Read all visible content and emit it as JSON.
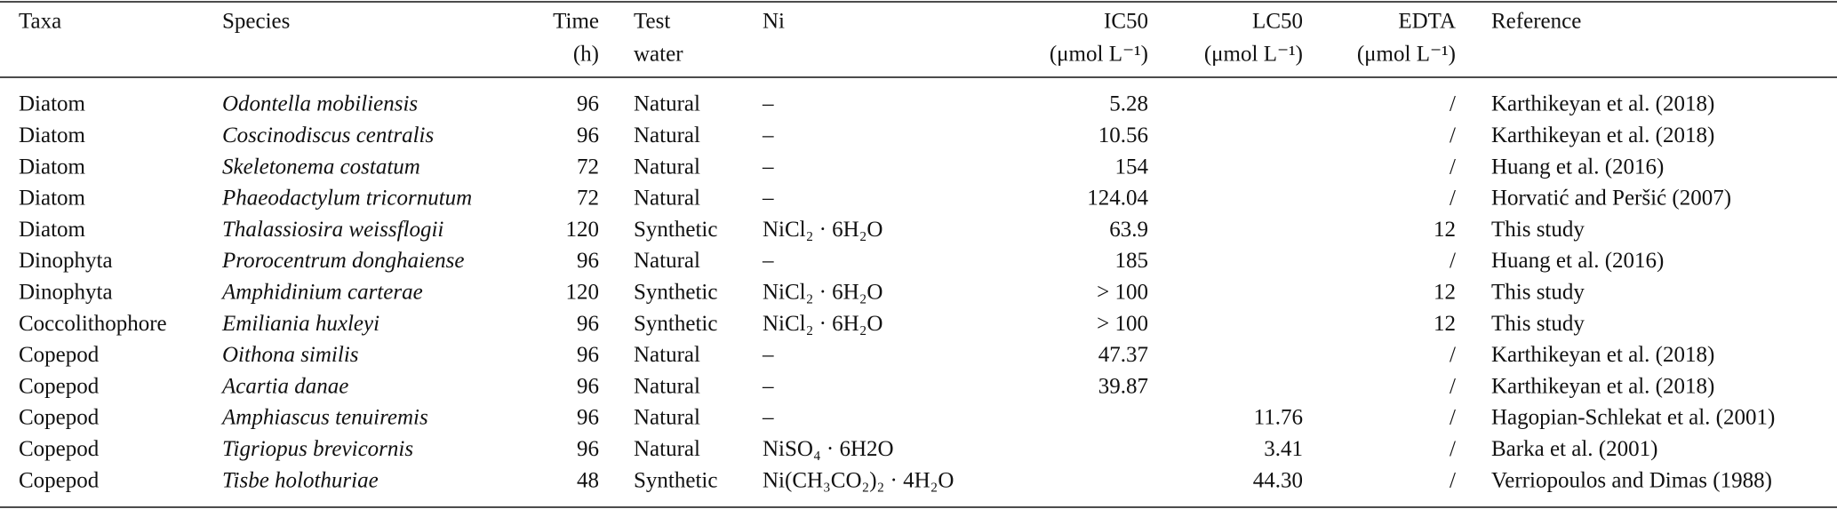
{
  "table": {
    "header": [
      [
        "Taxa"
      ],
      [
        "Species"
      ],
      [
        "Time",
        "(h)"
      ],
      [
        "Test",
        "water"
      ],
      [
        "Ni"
      ],
      [
        "IC50",
        "(μmol L⁻¹)"
      ],
      [
        "LC50",
        "(μmol L⁻¹)"
      ],
      [
        "EDTA",
        "(μmol L⁻¹)"
      ],
      [
        "Reference"
      ]
    ],
    "rows": [
      [
        "Diatom",
        "Odontella mobiliensis",
        96,
        "Natural",
        "–",
        5.28,
        null,
        "/",
        "Karthikeyan et al. (2018)"
      ],
      [
        "Diatom",
        "Coscinodiscus centralis",
        96,
        "Natural",
        "–",
        10.56,
        null,
        "/",
        "Karthikeyan et al. (2018)"
      ],
      [
        "Diatom",
        "Skeletonema costatum",
        72,
        "Natural",
        "–",
        154,
        null,
        "/",
        "Huang et al. (2016)"
      ],
      [
        "Diatom",
        "Phaeodactylum tricornutum",
        72,
        "Natural",
        "–",
        124.04,
        null,
        "/",
        "Horvatić and Peršić (2007)"
      ],
      [
        "Diatom",
        "Thalassiosira weissflogii",
        120,
        "Synthetic",
        "NiCl₂ · 6H₂O",
        63.9,
        null,
        12,
        "This study"
      ],
      [
        "Dinophyta",
        "Prorocentrum donghaiense",
        96,
        "Natural",
        "–",
        185,
        null,
        "/",
        "Huang et al. (2016)"
      ],
      [
        "Dinophyta",
        "Amphidinium carterae",
        120,
        "Synthetic",
        "NiCl₂ · 6H₂O",
        "> 100",
        null,
        12,
        "This study"
      ],
      [
        "Coccolithophore",
        "Emiliania huxleyi",
        96,
        "Synthetic",
        "NiCl₂ · 6H₂O",
        "> 100",
        null,
        12,
        "This study"
      ],
      [
        "Copepod",
        "Oithona similis",
        96,
        "Natural",
        "–",
        47.37,
        null,
        "/",
        "Karthikeyan et al. (2018)"
      ],
      [
        "Copepod",
        "Acartia danae",
        96,
        "Natural",
        "–",
        39.87,
        null,
        "/",
        "Karthikeyan et al. (2018)"
      ],
      [
        "Copepod",
        "Amphiascus tenuiremis",
        96,
        "Natural",
        "–",
        null,
        11.76,
        "/",
        "Hagopian-Schlekat et al. (2001)"
      ],
      [
        "Copepod",
        "Tigriopus brevicornis",
        96,
        "Natural",
        "NiSO₄ · 6H2O",
        null,
        3.41,
        "/",
        "Barka et al. (2001)"
      ],
      [
        "Copepod",
        "Tisbe holothuriae",
        48,
        "Synthetic",
        "Ni(CH₃CO₂)₂ · 4H₂O",
        null,
        "44.30",
        "/",
        "Verriopoulos and Dimas (1988)"
      ]
    ]
  }
}
